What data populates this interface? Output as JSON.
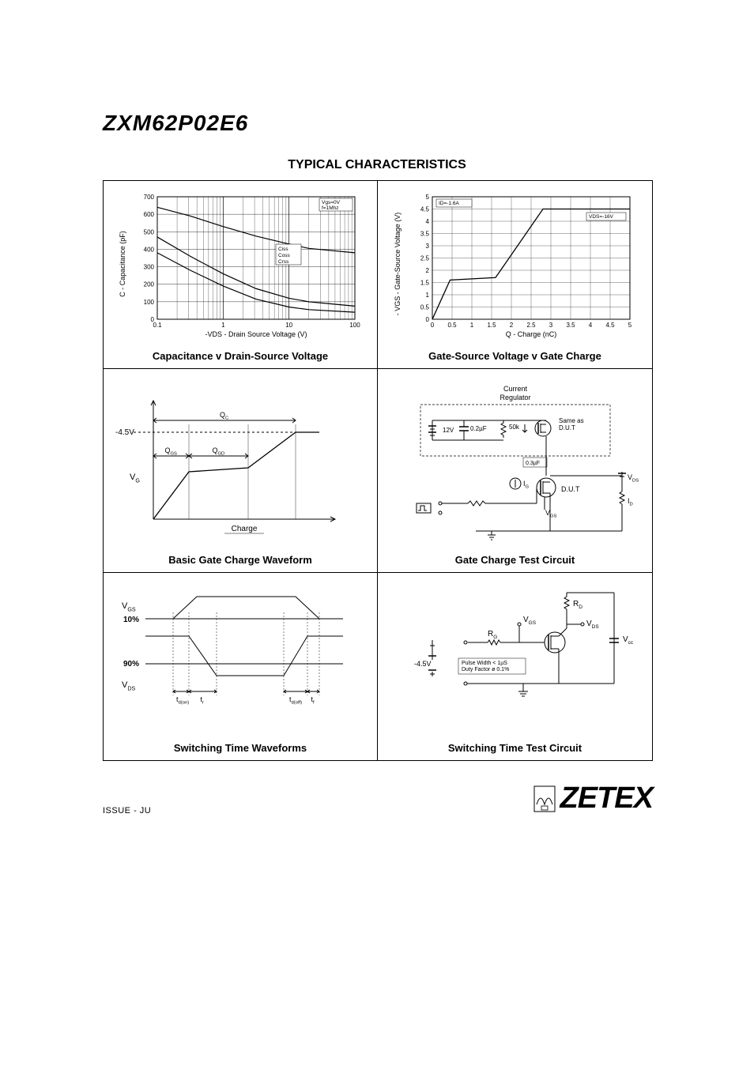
{
  "part_number": "ZXM62P02E6",
  "section_title": "TYPICAL CHARACTERISTICS",
  "issue_text": "ISSUE   - JU",
  "logo_text": "ZETEX",
  "colors": {
    "fg": "#000000",
    "bg": "#ffffff",
    "grid": "#000000"
  },
  "chart_cap": {
    "caption": "Capacitance v Drain-Source Voltage",
    "y_label": "C - Capacitance (pF)",
    "x_label": "-VDS - Drain Source Voltage (V)",
    "note1": "Vgs=0V",
    "note2": "f=1Mhz",
    "legend": [
      "Ciss",
      "Coss",
      "Crss"
    ],
    "y_ticks": [
      "0",
      "100",
      "200",
      "300",
      "400",
      "500",
      "600",
      "700"
    ],
    "x_ticks": [
      "0.1",
      "1",
      "10",
      "100"
    ],
    "ylim": [
      0,
      700
    ],
    "xlim_log": [
      -1,
      2
    ],
    "series": {
      "ciss": [
        {
          "x": -1,
          "y": 640
        },
        {
          "x": -0.5,
          "y": 590
        },
        {
          "x": 0,
          "y": 530
        },
        {
          "x": 0.5,
          "y": 475
        },
        {
          "x": 1,
          "y": 430
        },
        {
          "x": 1.3,
          "y": 405
        },
        {
          "x": 2,
          "y": 380
        }
      ],
      "coss": [
        {
          "x": -1,
          "y": 470
        },
        {
          "x": -0.5,
          "y": 360
        },
        {
          "x": 0,
          "y": 260
        },
        {
          "x": 0.5,
          "y": 175
        },
        {
          "x": 1,
          "y": 120
        },
        {
          "x": 1.3,
          "y": 100
        },
        {
          "x": 2,
          "y": 75
        }
      ],
      "crss": [
        {
          "x": -1,
          "y": 380
        },
        {
          "x": -0.5,
          "y": 280
        },
        {
          "x": 0,
          "y": 190
        },
        {
          "x": 0.5,
          "y": 115
        },
        {
          "x": 1,
          "y": 70
        },
        {
          "x": 1.3,
          "y": 55
        },
        {
          "x": 2,
          "y": 40
        }
      ]
    }
  },
  "chart_gate": {
    "caption": "Gate-Source Voltage v Gate Charge",
    "y_label": "- VGS - Gate-Source Voltage (V)",
    "x_label": "Q - Charge (nC)",
    "note1": "ID=-1.6A",
    "note2": "VDS=-16V",
    "y_ticks": [
      "0",
      "0.5",
      "1",
      "1.5",
      "2",
      "2.5",
      "3",
      "3.5",
      "4",
      "4.5",
      "5"
    ],
    "x_ticks": [
      "0",
      "0.5",
      "1",
      "1.5",
      "2",
      "2.5",
      "3",
      "3.5",
      "4",
      "4.5",
      "5"
    ],
    "ylim": [
      0,
      5
    ],
    "xlim": [
      0,
      5
    ],
    "points": [
      {
        "x": 0,
        "y": 0
      },
      {
        "x": 0.45,
        "y": 1.6
      },
      {
        "x": 1.6,
        "y": 1.7
      },
      {
        "x": 2.8,
        "y": 4.5
      },
      {
        "x": 5,
        "y": 4.5
      }
    ]
  },
  "waveform_charge": {
    "caption": "Basic Gate Charge Waveform",
    "labels": {
      "vg": "V",
      "vg_sub": "G",
      "qc": "Q",
      "qc_sub": "C",
      "qgs": "Q",
      "qgs_sub": "GS",
      "qgd": "Q",
      "qgd_sub": "GD",
      "v45": "-4.5V",
      "charge": "Charge"
    }
  },
  "circuit_charge": {
    "caption": "Gate Charge Test Circuit",
    "labels": {
      "title": "Current\nRegulator",
      "v12": "12V",
      "c02": "0.2µF",
      "r50k": "50k",
      "same_as": "Same as\nD.U.T",
      "c03": "0.3µF",
      "ig": "I",
      "ig_sub": "G",
      "dut": "D.U.T",
      "vgs": "V",
      "vgs_sub": "GS",
      "vds": "V",
      "vds_sub": "DS",
      "id": "I",
      "id_sub": "D"
    }
  },
  "waveform_sw": {
    "caption": "Switching Time Waveforms",
    "labels": {
      "vgs": "V",
      "vgs_sub": "GS",
      "vds": "V",
      "vds_sub": "DS",
      "p10": "10%",
      "p90": "90%",
      "tdon": "t",
      "tdon_sub": "d(on)",
      "tr": "t",
      "tr_sub": "r",
      "tdoff": "t",
      "tdoff_sub": "d(off)",
      "tf": "t",
      "tf_sub": "f"
    }
  },
  "circuit_sw": {
    "caption": "Switching Time Test Circuit",
    "labels": {
      "rd": "R",
      "rd_sub": "D",
      "rg": "R",
      "rg_sub": "G",
      "vgs": "V",
      "vgs_sub": "GS",
      "vds": "V",
      "vds_sub": "DS",
      "vcc": "V",
      "vcc_sub": "cc",
      "v45": "-4.5V",
      "note1": "Pulse Width < 1µS",
      "note2": "Duty Factor ø 0.1%"
    }
  }
}
